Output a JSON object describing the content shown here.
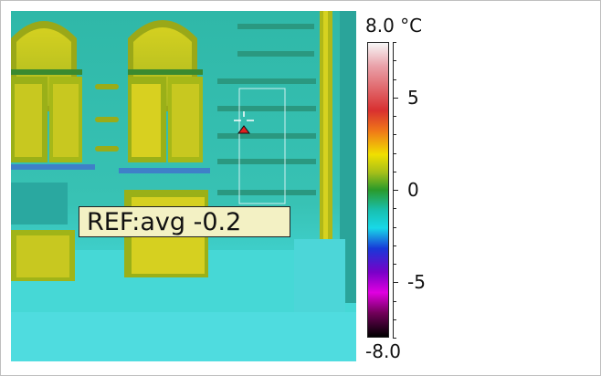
{
  "measurement": {
    "ref_label": "REF:avg -0.2"
  },
  "scale": {
    "unit_title": "8.0 °C",
    "max": 8.0,
    "min": -8.0,
    "min_label": "-8.0",
    "ticks": [
      {
        "label": "5",
        "value": 5
      },
      {
        "label": "0",
        "value": 0
      },
      {
        "label": "-5",
        "value": -5
      }
    ],
    "palette": [
      "#f7f7f7",
      "#e9a0a8",
      "#d83030",
      "#f07818",
      "#f0e000",
      "#a8c018",
      "#2a9a2a",
      "#18c0b0",
      "#18d8e8",
      "#1838d8",
      "#7800c8",
      "#e000e0",
      "#700058",
      "#000000"
    ]
  },
  "colors": {
    "ref_box_bg": "#f3f1c4",
    "marker": "#e02020",
    "roi_box": "#d0f0f0"
  }
}
